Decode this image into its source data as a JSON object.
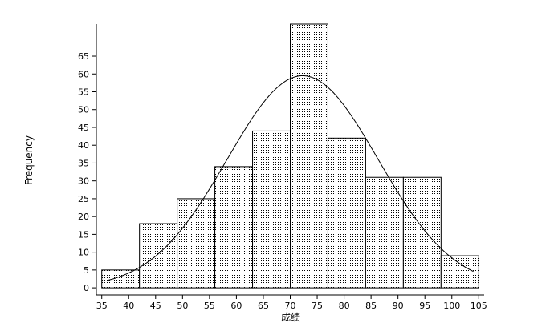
{
  "chart_data": {
    "type": "bar",
    "title": "",
    "xlabel": "成绩",
    "ylabel": "Frequency",
    "bins": [
      {
        "from": 35.0,
        "to": 42.0,
        "value": 5
      },
      {
        "from": 42.0,
        "to": 49.0,
        "value": 18
      },
      {
        "from": 49.0,
        "to": 56.0,
        "value": 25
      },
      {
        "from": 56.0,
        "to": 63.0,
        "value": 34
      },
      {
        "from": 63.0,
        "to": 70.0,
        "value": 44
      },
      {
        "from": 70.0,
        "to": 77.0,
        "value": 74
      },
      {
        "from": 77.0,
        "to": 84.0,
        "value": 42
      },
      {
        "from": 84.0,
        "to": 91.0,
        "value": 31
      },
      {
        "from": 91.0,
        "to": 98.0,
        "value": 31
      },
      {
        "from": 98.0,
        "to": 105.0,
        "value": 9
      }
    ],
    "normal_curve": {
      "mean": 72.3,
      "sd": 14.0,
      "peak": 59.5
    },
    "xlim": [
      34,
      106
    ],
    "ylim": [
      -2,
      74
    ],
    "xticks": [
      "35",
      "40",
      "45",
      "50",
      "55",
      "60",
      "65",
      "70",
      "75",
      "80",
      "85",
      "90",
      "95",
      "100",
      "105"
    ],
    "yticks": [
      "0",
      "5",
      "10",
      "15",
      "20",
      "25",
      "30",
      "35",
      "40",
      "45",
      "50",
      "55",
      "60",
      "65"
    ],
    "grid": false,
    "bar_fill": "dotted",
    "colors": {
      "bar_fill": "#ffffff",
      "dot": "#000000",
      "outline": "#000000",
      "curve": "#000000"
    }
  }
}
